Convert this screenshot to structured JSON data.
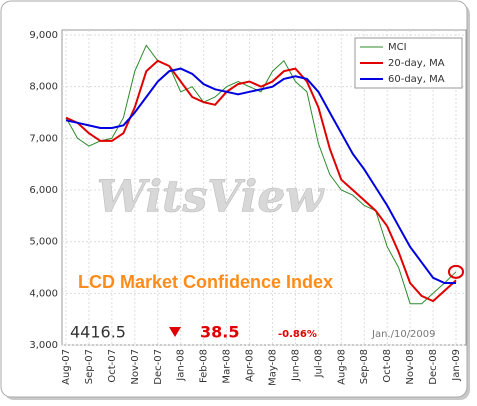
{
  "chart_data": {
    "type": "line",
    "title": "LCD Market Confidence Index",
    "watermark": "WitsView",
    "annotations": {
      "index": "4416.5",
      "change": "38.5",
      "change_pct": "-0.86%",
      "date": "Jan./10/2009"
    },
    "categories": [
      "Aug-07",
      null,
      "Sep-07",
      null,
      "Oct-07",
      null,
      "Nov-07",
      null,
      "Dec-07",
      null,
      "Jan-08",
      null,
      "Feb-08",
      null,
      "Mar-08",
      null,
      "Apr-08",
      null,
      "May-08",
      null,
      "Jun-08",
      null,
      "Jul-08",
      null,
      "Aug-08",
      null,
      "Sep-08",
      null,
      "Oct-08",
      null,
      "Nov-08",
      null,
      "Dec-08",
      null,
      "Jan-09"
    ],
    "series": [
      {
        "name": "MCI",
        "color": "#2e8b2e",
        "values": [
          7400,
          7000,
          6850,
          6950,
          7000,
          7400,
          8300,
          8800,
          8500,
          8400,
          7900,
          8000,
          7700,
          7800,
          8000,
          8100,
          8000,
          7900,
          8300,
          8500,
          8100,
          7900,
          6900,
          6300,
          6000,
          5900,
          5700,
          5600,
          4900,
          4500,
          3800,
          3800,
          4000,
          4200,
          4416.5
        ]
      },
      {
        "name": "20-day, MA",
        "color": "#e00000",
        "values": [
          7400,
          7300,
          7100,
          6950,
          6950,
          7100,
          7600,
          8300,
          8500,
          8400,
          8100,
          7800,
          7700,
          7650,
          7900,
          8050,
          8100,
          8000,
          8100,
          8300,
          8350,
          8100,
          7600,
          6800,
          6200,
          6000,
          5800,
          5600,
          5300,
          4800,
          4200,
          3950,
          3850,
          4050,
          4250
        ]
      },
      {
        "name": "60-day, MA",
        "color": "#0000e0",
        "values": [
          7350,
          7300,
          7250,
          7200,
          7200,
          7250,
          7500,
          7800,
          8100,
          8300,
          8350,
          8250,
          8050,
          7950,
          7900,
          7850,
          7900,
          7950,
          8000,
          8150,
          8200,
          8150,
          7900,
          7500,
          7100,
          6700,
          6400,
          6050,
          5700,
          5300,
          4900,
          4600,
          4300,
          4200,
          4200
        ]
      }
    ],
    "ylim": [
      3000,
      9000
    ],
    "yticks": [
      {
        "value": 3000,
        "label": "3,000"
      },
      {
        "value": 4000,
        "label": "4,000"
      },
      {
        "value": 5000,
        "label": "5,000"
      },
      {
        "value": 6000,
        "label": "6,000"
      },
      {
        "value": 7000,
        "label": "7,000"
      },
      {
        "value": 8000,
        "label": "8,000"
      },
      {
        "value": 9000,
        "label": "9,000"
      }
    ],
    "grid": true,
    "legend": "top-right"
  }
}
